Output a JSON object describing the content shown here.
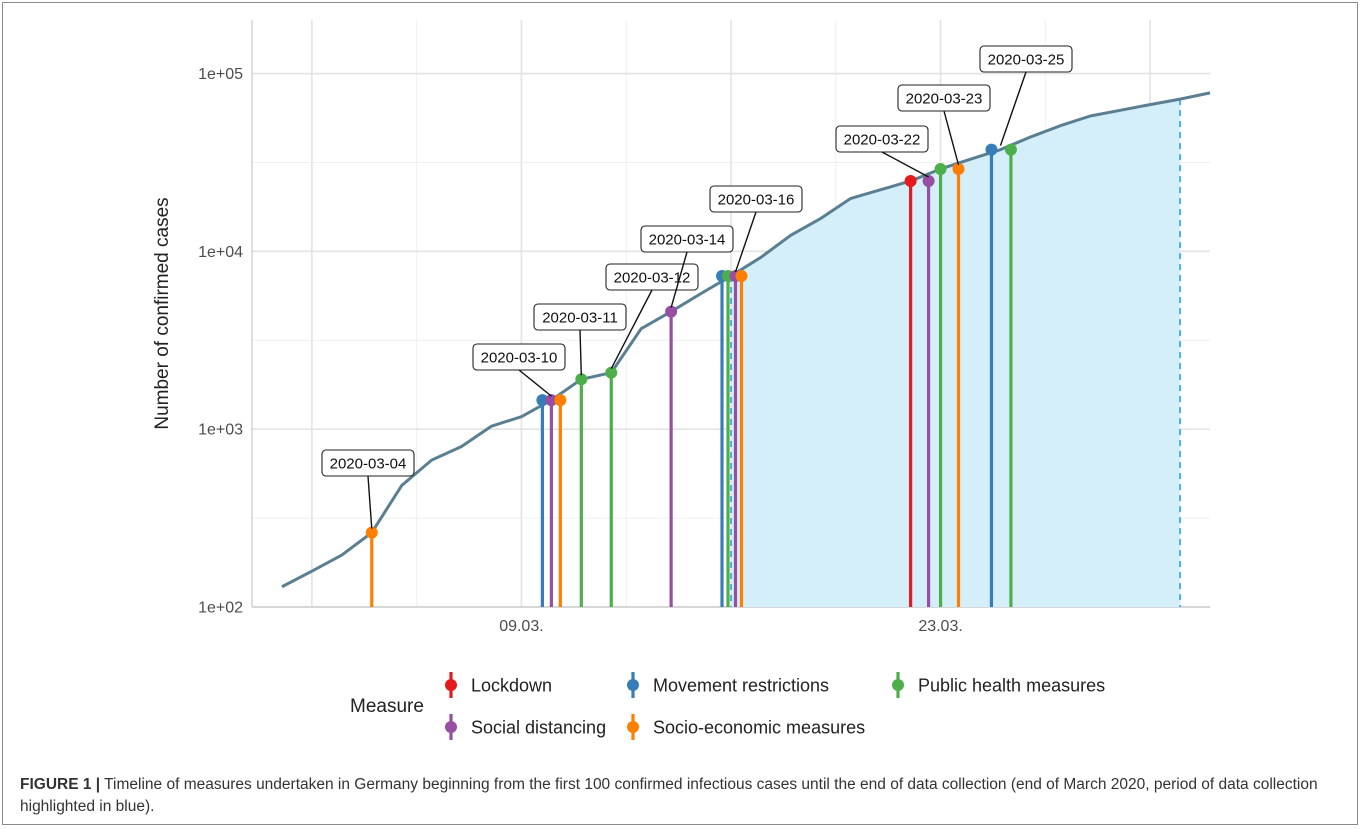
{
  "chart_data": {
    "type": "line",
    "ylabel": "Number of confirmed cases",
    "y_scale": "log10",
    "ylim": [
      100,
      200000
    ],
    "xlim": [
      "2020-02-29",
      "2020-04-01"
    ],
    "y_ticks": [
      {
        "value": 100,
        "label": "1e+02"
      },
      {
        "value": 1000,
        "label": "1e+03"
      },
      {
        "value": 10000,
        "label": "1e+04"
      },
      {
        "value": 100000,
        "label": "1e+05"
      }
    ],
    "x_ticks": [
      {
        "date": "2020-03-09",
        "label": "09.03."
      },
      {
        "date": "2020-03-23",
        "label": "23.03."
      }
    ],
    "grid": true,
    "highlight_period": {
      "start": "2020-03-16",
      "end": "2020-03-31",
      "color": "#d4eefa",
      "edge_color": "#29a3d6"
    },
    "series": [
      {
        "color": "#5b7f92",
        "points": [
          [
            "2020-03-01",
            130
          ],
          [
            "2020-03-02",
            159
          ],
          [
            "2020-03-03",
            196
          ],
          [
            "2020-03-04",
            262
          ],
          [
            "2020-03-05",
            482
          ],
          [
            "2020-03-06",
            670
          ],
          [
            "2020-03-07",
            799
          ],
          [
            "2020-03-08",
            1040
          ],
          [
            "2020-03-09",
            1176
          ],
          [
            "2020-03-10",
            1457
          ],
          [
            "2020-03-11",
            1908
          ],
          [
            "2020-03-12",
            2078
          ],
          [
            "2020-03-13",
            3675
          ],
          [
            "2020-03-14",
            4585
          ],
          [
            "2020-03-15",
            5795
          ],
          [
            "2020-03-16",
            7272
          ],
          [
            "2020-03-17",
            9257
          ],
          [
            "2020-03-18",
            12327
          ],
          [
            "2020-03-19",
            15320
          ],
          [
            "2020-03-20",
            19848
          ],
          [
            "2020-03-21",
            22213
          ],
          [
            "2020-03-22",
            24873
          ],
          [
            "2020-03-23",
            29056
          ],
          [
            "2020-03-24",
            32986
          ],
          [
            "2020-03-25",
            37323
          ],
          [
            "2020-03-26",
            43938
          ],
          [
            "2020-03-27",
            50871
          ],
          [
            "2020-03-28",
            57695
          ],
          [
            "2020-03-29",
            62095
          ],
          [
            "2020-03-30",
            66885
          ],
          [
            "2020-03-31",
            71808
          ],
          [
            "2020-04-01",
            77872
          ]
        ]
      }
    ],
    "measures": [
      {
        "date": "2020-03-04",
        "offset": 0,
        "type": "socio",
        "cases": 262
      },
      {
        "date": "2020-03-10",
        "offset": -0.3,
        "type": "movement",
        "cases": 1457
      },
      {
        "date": "2020-03-10",
        "offset": 0,
        "type": "social",
        "cases": 1457
      },
      {
        "date": "2020-03-10",
        "offset": 0.3,
        "type": "socio",
        "cases": 1457
      },
      {
        "date": "2020-03-11",
        "offset": 0,
        "type": "public",
        "cases": 1908
      },
      {
        "date": "2020-03-12",
        "offset": 0,
        "type": "public",
        "cases": 2078
      },
      {
        "date": "2020-03-14",
        "offset": 0,
        "type": "social",
        "cases": 4585
      },
      {
        "date": "2020-03-16",
        "offset": -0.3,
        "type": "movement",
        "cases": 7272
      },
      {
        "date": "2020-03-16",
        "offset": -0.1,
        "type": "public",
        "cases": 7272
      },
      {
        "date": "2020-03-16",
        "offset": 0.15,
        "type": "social",
        "cases": 7272
      },
      {
        "date": "2020-03-16",
        "offset": 0.35,
        "type": "socio",
        "cases": 7272
      },
      {
        "date": "2020-03-22",
        "offset": 0,
        "type": "lockdown",
        "cases": 24873
      },
      {
        "date": "2020-03-22",
        "offset": 0.6,
        "type": "social",
        "cases": 24873
      },
      {
        "date": "2020-03-23",
        "offset": 0,
        "type": "public",
        "cases": 29056
      },
      {
        "date": "2020-03-23",
        "offset": 0.6,
        "type": "socio",
        "cases": 29056
      },
      {
        "date": "2020-03-25",
        "offset": -0.3,
        "type": "movement",
        "cases": 37323
      },
      {
        "date": "2020-03-25",
        "offset": 0.35,
        "type": "public",
        "cases": 37323
      }
    ],
    "annotations": [
      {
        "text": "2020-03-04",
        "date": "2020-03-04",
        "offset": 0,
        "cases": 262
      },
      {
        "text": "2020-03-10",
        "date": "2020-03-10",
        "offset": 0,
        "cases": 1457
      },
      {
        "text": "2020-03-11",
        "date": "2020-03-11",
        "offset": 0,
        "cases": 1908
      },
      {
        "text": "2020-03-12",
        "date": "2020-03-12",
        "offset": 0,
        "cases": 2078
      },
      {
        "text": "2020-03-14",
        "date": "2020-03-14",
        "offset": 0,
        "cases": 4585
      },
      {
        "text": "2020-03-16",
        "date": "2020-03-16",
        "offset": 0.15,
        "cases": 7272
      },
      {
        "text": "2020-03-22",
        "date": "2020-03-22",
        "offset": 0.6,
        "cases": 24873
      },
      {
        "text": "2020-03-23",
        "date": "2020-03-23",
        "offset": 0.6,
        "cases": 29056
      },
      {
        "text": "2020-03-25",
        "date": "2020-03-25",
        "offset": 0,
        "cases": 37323
      }
    ],
    "legend": {
      "title": "Measure",
      "placement": "bottom",
      "entries": [
        {
          "key": "lockdown",
          "label": "Lockdown",
          "color": "#e41a1c"
        },
        {
          "key": "movement",
          "label": "Movement restrictions",
          "color": "#377eb8"
        },
        {
          "key": "public",
          "label": "Public health measures",
          "color": "#4daf4a"
        },
        {
          "key": "social",
          "label": "Social distancing",
          "color": "#984ea3"
        },
        {
          "key": "socio",
          "label": "Socio-economic measures",
          "color": "#ff7f00"
        }
      ]
    }
  },
  "caption": {
    "label": "FIGURE 1 |",
    "text": " Timeline of measures undertaken in Germany beginning from the first 100 confirmed infectious cases until the end of data collection (end of March 2020, period of data collection highlighted in blue)."
  }
}
